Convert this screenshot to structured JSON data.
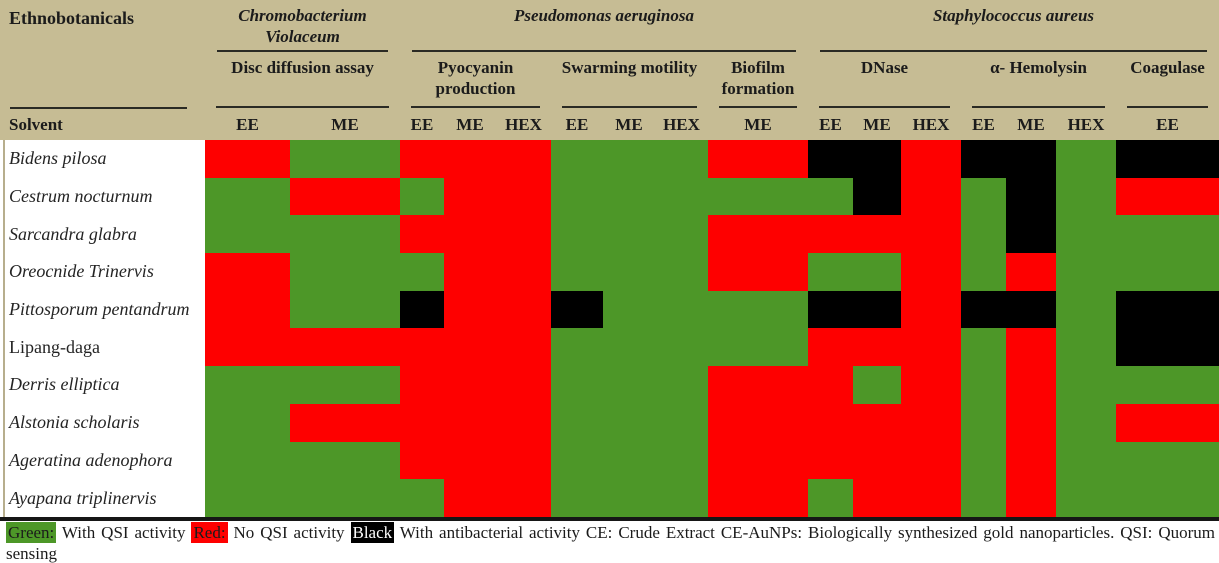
{
  "palette": {
    "green": "#4d9728",
    "red": "#fe0000",
    "black": "#000000",
    "header_bg": "#c6bc94",
    "rule": "#2a2a24",
    "separator": "#161616"
  },
  "header": {
    "col1_title": "Ethnobotanicals",
    "solvent_label": "Solvent",
    "groups": [
      {
        "label": "Chromobacterium Violaceum",
        "assays": [
          {
            "label": "Disc diffusion assay",
            "solvents": [
              "EE",
              "ME"
            ]
          }
        ]
      },
      {
        "label": "Pseudomonas aeruginosa",
        "assays": [
          {
            "label": "Pyocyanin production",
            "solvents": [
              "EE",
              "ME",
              "HEX"
            ]
          },
          {
            "label": "Swarming motility",
            "solvents": [
              "EE",
              "ME",
              "HEX"
            ]
          },
          {
            "label": "Biofilm formation",
            "solvents": [
              "ME"
            ]
          }
        ]
      },
      {
        "label": "Staphylococcus aureus",
        "assays": [
          {
            "label": "DNase",
            "solvents": [
              "EE",
              "ME",
              "HEX"
            ]
          },
          {
            "label": "α- Hemolysin",
            "solvents": [
              "EE",
              "ME",
              "HEX"
            ]
          },
          {
            "label": "Coagulase",
            "solvents": [
              "EE"
            ]
          }
        ]
      }
    ]
  },
  "row_styles": {
    "non_italic": [
      "Lipang-daga"
    ]
  },
  "chart_data": {
    "type": "heatmap",
    "rows": [
      "Bidens pilosa",
      "Cestrum nocturnum",
      "Sarcandra glabra",
      "Oreocnide Trinervis",
      "Pittosporum pentandrum",
      "Lipang-daga",
      "Derris elliptica",
      "Alstonia scholaris",
      "Ageratina adenophora",
      "Ayapana triplinervis"
    ],
    "columns": [
      "Chromobacterium Violaceum / Disc diffusion assay / EE",
      "Chromobacterium Violaceum / Disc diffusion assay / ME",
      "Pseudomonas aeruginosa / Pyocyanin production / EE",
      "Pseudomonas aeruginosa / Pyocyanin production / ME",
      "Pseudomonas aeruginosa / Pyocyanin production / HEX",
      "Pseudomonas aeruginosa / Swarming motility / EE",
      "Pseudomonas aeruginosa / Swarming motility / ME",
      "Pseudomonas aeruginosa / Swarming motility / HEX",
      "Pseudomonas aeruginosa / Biofilm formation / ME",
      "Staphylococcus aureus / DNase / EE",
      "Staphylococcus aureus / DNase / ME",
      "Staphylococcus aureus / DNase / HEX",
      "Staphylococcus aureus / α- Hemolysin / EE",
      "Staphylococcus aureus / α- Hemolysin / ME",
      "Staphylococcus aureus / α- Hemolysin / HEX",
      "Staphylococcus aureus / Coagulase / EE"
    ],
    "values": [
      [
        "red",
        "green",
        "red",
        "red",
        "red",
        "green",
        "green",
        "green",
        "red",
        "black",
        "black",
        "red",
        "black",
        "black",
        "green",
        "black"
      ],
      [
        "green",
        "red",
        "green",
        "red",
        "red",
        "green",
        "green",
        "green",
        "green",
        "green",
        "black",
        "red",
        "green",
        "black",
        "green",
        "red"
      ],
      [
        "green",
        "green",
        "red",
        "red",
        "red",
        "green",
        "green",
        "green",
        "red",
        "red",
        "red",
        "red",
        "green",
        "black",
        "green",
        "green"
      ],
      [
        "red",
        "green",
        "green",
        "red",
        "red",
        "green",
        "green",
        "green",
        "red",
        "green",
        "green",
        "red",
        "green",
        "red",
        "green",
        "green"
      ],
      [
        "red",
        "green",
        "black",
        "red",
        "red",
        "black",
        "green",
        "green",
        "green",
        "black",
        "black",
        "red",
        "black",
        "black",
        "green",
        "black"
      ],
      [
        "red",
        "red",
        "red",
        "red",
        "red",
        "green",
        "green",
        "green",
        "green",
        "red",
        "red",
        "red",
        "green",
        "red",
        "green",
        "black"
      ],
      [
        "green",
        "green",
        "red",
        "red",
        "red",
        "green",
        "green",
        "green",
        "red",
        "red",
        "green",
        "red",
        "green",
        "red",
        "green",
        "green"
      ],
      [
        "green",
        "red",
        "red",
        "red",
        "red",
        "green",
        "green",
        "green",
        "red",
        "red",
        "red",
        "red",
        "green",
        "red",
        "green",
        "red"
      ],
      [
        "green",
        "green",
        "red",
        "red",
        "red",
        "green",
        "green",
        "green",
        "red",
        "red",
        "red",
        "red",
        "green",
        "red",
        "green",
        "green"
      ],
      [
        "green",
        "green",
        "green",
        "red",
        "red",
        "green",
        "green",
        "green",
        "red",
        "green",
        "red",
        "red",
        "green",
        "red",
        "green",
        "green"
      ]
    ],
    "value_meanings": {
      "green": "With QSI activity",
      "red": "No QSI activity",
      "black": "With antibacterial activity"
    }
  },
  "legend": {
    "entries": [
      {
        "color": "green",
        "swatch_label": "Green:",
        "text": "With QSI activity"
      },
      {
        "color": "red",
        "swatch_label": "Red:",
        "text": "No QSI activity"
      },
      {
        "color": "black",
        "swatch_label": "Black",
        "text": "With antibacterial activity CE: Crude Extract CE-AuNPs: Biologically synthesized gold nanoparticles. QSI: Quorum sensing"
      }
    ],
    "line2": "inhibition"
  }
}
